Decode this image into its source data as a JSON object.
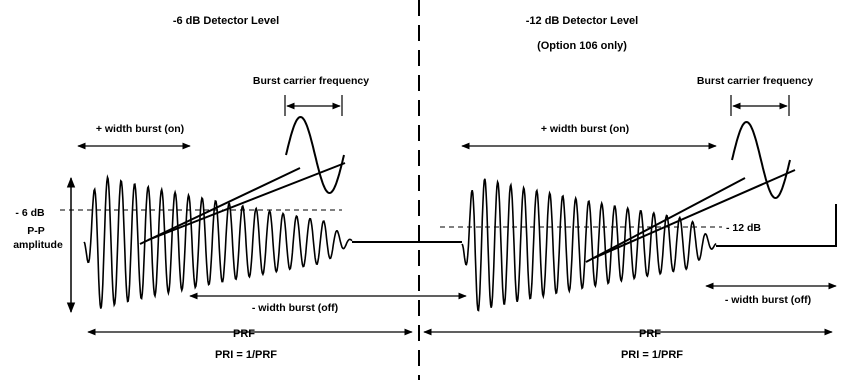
{
  "left": {
    "title": "-6 dB Detector Level",
    "burst_carrier_label": "Burst carrier frequency",
    "width_on_label": "+ width burst (on)",
    "width_off_label": "- width burst (off)",
    "db_marker": "- 6 dB",
    "amplitude_label_1": "P-P",
    "amplitude_label_2": "amplitude",
    "prf_label": "PRF",
    "pri_label": "PRI = 1/PRF"
  },
  "right": {
    "title_1": "-12 dB Detector Level",
    "title_2": "(Option 106 only)",
    "burst_carrier_label": "Burst carrier frequency",
    "width_on_label": "+ width burst (on)",
    "width_off_label": "- width burst (off)",
    "db_marker": "- 12 dB",
    "prf_label": "PRF",
    "pri_label": "PRI = 1/PRF"
  }
}
